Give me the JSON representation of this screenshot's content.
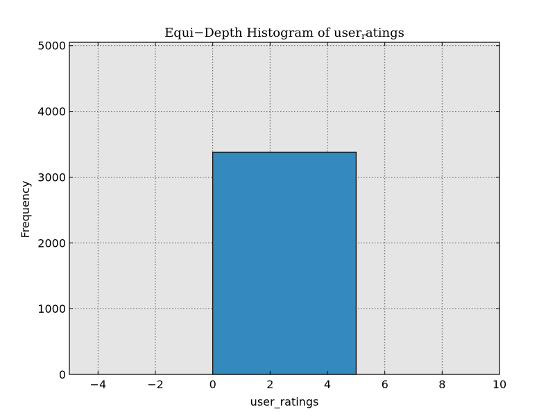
{
  "chart_data": {
    "type": "bar",
    "title": {
      "main": "Equi−Depth Histogram of user",
      "subscript": "r",
      "tail": "atings"
    },
    "xlabel": "user_ratings",
    "ylabel": "Frequency",
    "xlim": [
      -5,
      10
    ],
    "ylim": [
      0,
      5050
    ],
    "xticks": [
      -4,
      -2,
      0,
      2,
      4,
      6,
      8,
      10
    ],
    "xtick_labels": [
      "−4",
      "−2",
      "0",
      "2",
      "4",
      "6",
      "8",
      "10"
    ],
    "yticks": [
      0,
      1000,
      2000,
      3000,
      4000,
      5000
    ],
    "ytick_labels": [
      "0",
      "1000",
      "2000",
      "3000",
      "4000",
      "5000"
    ],
    "grid": true,
    "bins": [
      {
        "x_start": 0,
        "x_end": 5,
        "value": 3380
      }
    ],
    "colors": {
      "bar_fill": "#348abd",
      "bar_edge": "#000000",
      "plot_background": "#e5e5e5",
      "grid": "#555555"
    }
  }
}
